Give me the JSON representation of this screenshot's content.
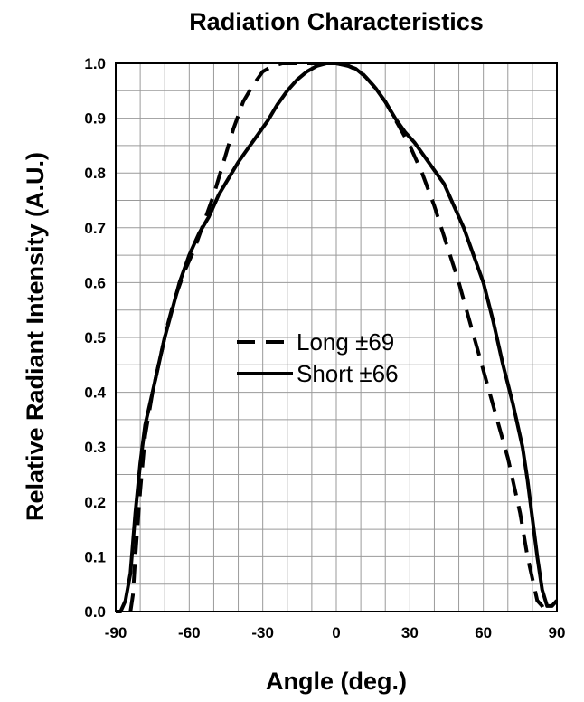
{
  "chart_data": {
    "type": "line",
    "title": "Radiation Characteristics",
    "xlabel": "Angle (deg.)",
    "ylabel": "Relative Radiant Intensity (A.U.)",
    "xlim": [
      -90,
      90
    ],
    "ylim": [
      0,
      1.0
    ],
    "xticks": [
      -90,
      -60,
      -30,
      0,
      30,
      60,
      90
    ],
    "yticks": [
      0.0,
      0.1,
      0.2,
      0.3,
      0.4,
      0.5,
      0.6,
      0.7,
      0.8,
      0.9,
      1.0
    ],
    "xtick_labels": [
      "-90",
      "-60",
      "-30",
      "0",
      "30",
      "60",
      "90"
    ],
    "ytick_labels": [
      "0.0",
      "0.1",
      "0.2",
      "0.3",
      "0.4",
      "0.5",
      "0.6",
      "0.7",
      "0.8",
      "0.9",
      "1.0"
    ],
    "grid": true,
    "legend_position": "center",
    "series": [
      {
        "name": "Long ±69",
        "style": "dashed",
        "color": "#000000",
        "x": [
          -84,
          -83,
          -82,
          -80,
          -78,
          -75,
          -72,
          -69,
          -66,
          -62,
          -58,
          -54,
          -50,
          -46,
          -42,
          -38,
          -34,
          -30,
          -26,
          -22,
          -18,
          -14,
          -10,
          -6,
          -2,
          0,
          5,
          10,
          15,
          20,
          25,
          30,
          35,
          40,
          45,
          50,
          55,
          60,
          65,
          70,
          75,
          78,
          80,
          82,
          84,
          85,
          86
        ],
        "y": [
          0.0,
          0.03,
          0.1,
          0.22,
          0.32,
          0.4,
          0.46,
          0.52,
          0.57,
          0.62,
          0.66,
          0.71,
          0.76,
          0.82,
          0.88,
          0.93,
          0.96,
          0.985,
          0.995,
          1.0,
          1.0,
          1.0,
          1.0,
          1.0,
          1.0,
          1.0,
          0.995,
          0.985,
          0.96,
          0.93,
          0.89,
          0.85,
          0.8,
          0.74,
          0.67,
          0.6,
          0.52,
          0.44,
          0.36,
          0.28,
          0.18,
          0.1,
          0.06,
          0.02,
          0.01,
          0.0,
          0.0
        ]
      },
      {
        "name": "Short ±66",
        "style": "solid",
        "color": "#000000",
        "x": [
          -90,
          -88,
          -86,
          -84,
          -82,
          -80,
          -78,
          -76,
          -74,
          -72,
          -70,
          -67,
          -64,
          -60,
          -56,
          -52,
          -48,
          -44,
          -40,
          -36,
          -32,
          -28,
          -24,
          -20,
          -16,
          -12,
          -8,
          -4,
          0,
          4,
          8,
          12,
          16,
          20,
          24,
          28,
          32,
          36,
          40,
          44,
          48,
          52,
          56,
          60,
          64,
          68,
          72,
          76,
          78,
          80,
          82,
          84,
          86,
          88,
          90
        ],
        "y": [
          0.0,
          0.0,
          0.02,
          0.07,
          0.18,
          0.27,
          0.34,
          0.38,
          0.42,
          0.46,
          0.5,
          0.55,
          0.6,
          0.65,
          0.69,
          0.72,
          0.76,
          0.79,
          0.82,
          0.845,
          0.87,
          0.895,
          0.925,
          0.95,
          0.97,
          0.985,
          0.995,
          1.0,
          1.0,
          0.997,
          0.99,
          0.975,
          0.955,
          0.93,
          0.9,
          0.875,
          0.855,
          0.83,
          0.805,
          0.78,
          0.74,
          0.7,
          0.65,
          0.6,
          0.53,
          0.45,
          0.38,
          0.3,
          0.24,
          0.17,
          0.1,
          0.04,
          0.01,
          0.01,
          0.02
        ]
      }
    ]
  }
}
